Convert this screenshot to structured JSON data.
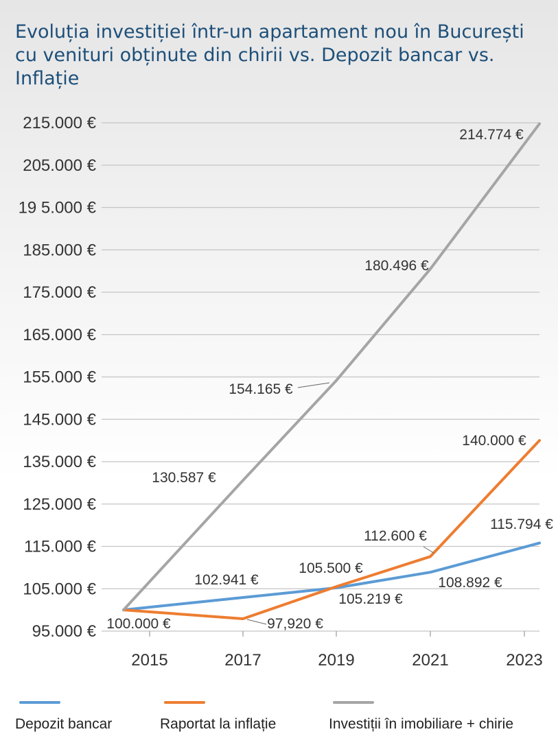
{
  "title": "Evoluția investiției într-un apartament nou în București cu venituri obținute din chirii vs. Depozit bancar vs. Inflație",
  "chart_data": {
    "type": "line",
    "title": "Evoluția investiției într-un apartament nou în București cu venituri obținute din chirii vs. Depozit bancar vs. Inflație",
    "xlabel": "",
    "ylabel": "",
    "x_tick_labels": [
      "2015",
      "2017",
      "2019",
      "2021",
      "2023"
    ],
    "y_tick_labels": [
      "95.000 €",
      "105.000 €",
      "115.000 €",
      "125.000 €",
      "135.000 €",
      "145.000 €",
      "155.000 €",
      "165.000 €",
      "175.000 €",
      "185.000 €",
      "19 5.000 €",
      "205.000 €",
      "215.000 €"
    ],
    "ylim": [
      95000,
      215000
    ],
    "grid": true,
    "legend_position": "bottom",
    "series": [
      {
        "name": "Depozit bancar",
        "color": "#5b9bd5",
        "values": [
          100000,
          102941,
          105219,
          108892,
          115794
        ],
        "labels": [
          "100.000 €",
          "102.941 €",
          "105.219 €",
          "108.892 €",
          "115.794 €"
        ]
      },
      {
        "name": "Raportat la inflație",
        "color": "#ed7d31",
        "values": [
          100000,
          97920,
          105500,
          112600,
          140000
        ],
        "labels": [
          "",
          "97,920 €",
          "105.500 €",
          "112.600 €",
          "140.000 €"
        ]
      },
      {
        "name": "Investiții în imobiliare + chirie",
        "color": "#a5a5a5",
        "values": [
          100000,
          130587,
          154165,
          180496,
          214774
        ],
        "labels": [
          "",
          "130.587 €",
          "154.165 €",
          "180.496 €",
          "214.774 €"
        ]
      }
    ]
  }
}
